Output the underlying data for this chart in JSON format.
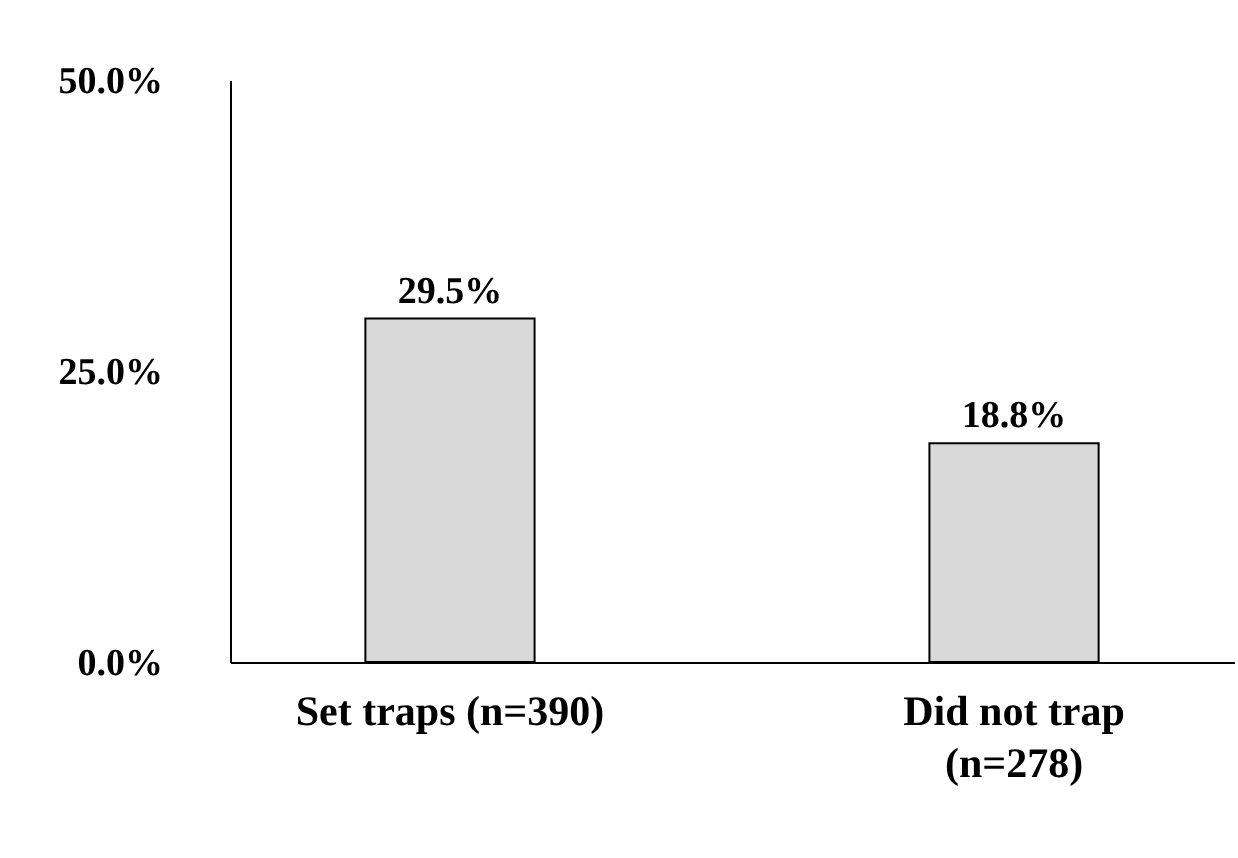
{
  "chart_data": {
    "type": "bar",
    "categories": [
      "Set traps (n=390)",
      "Did not trap (n=278)"
    ],
    "values": [
      29.5,
      18.8
    ],
    "value_labels": [
      "29.5%",
      "18.8%"
    ],
    "color": "#d9d9d9",
    "ylim": [
      0,
      50
    ],
    "yticks": [
      {
        "value": 0,
        "label": "0.0%"
      },
      {
        "value": 25,
        "label": "25.0%"
      },
      {
        "value": 50,
        "label": "50.0%"
      }
    ]
  }
}
